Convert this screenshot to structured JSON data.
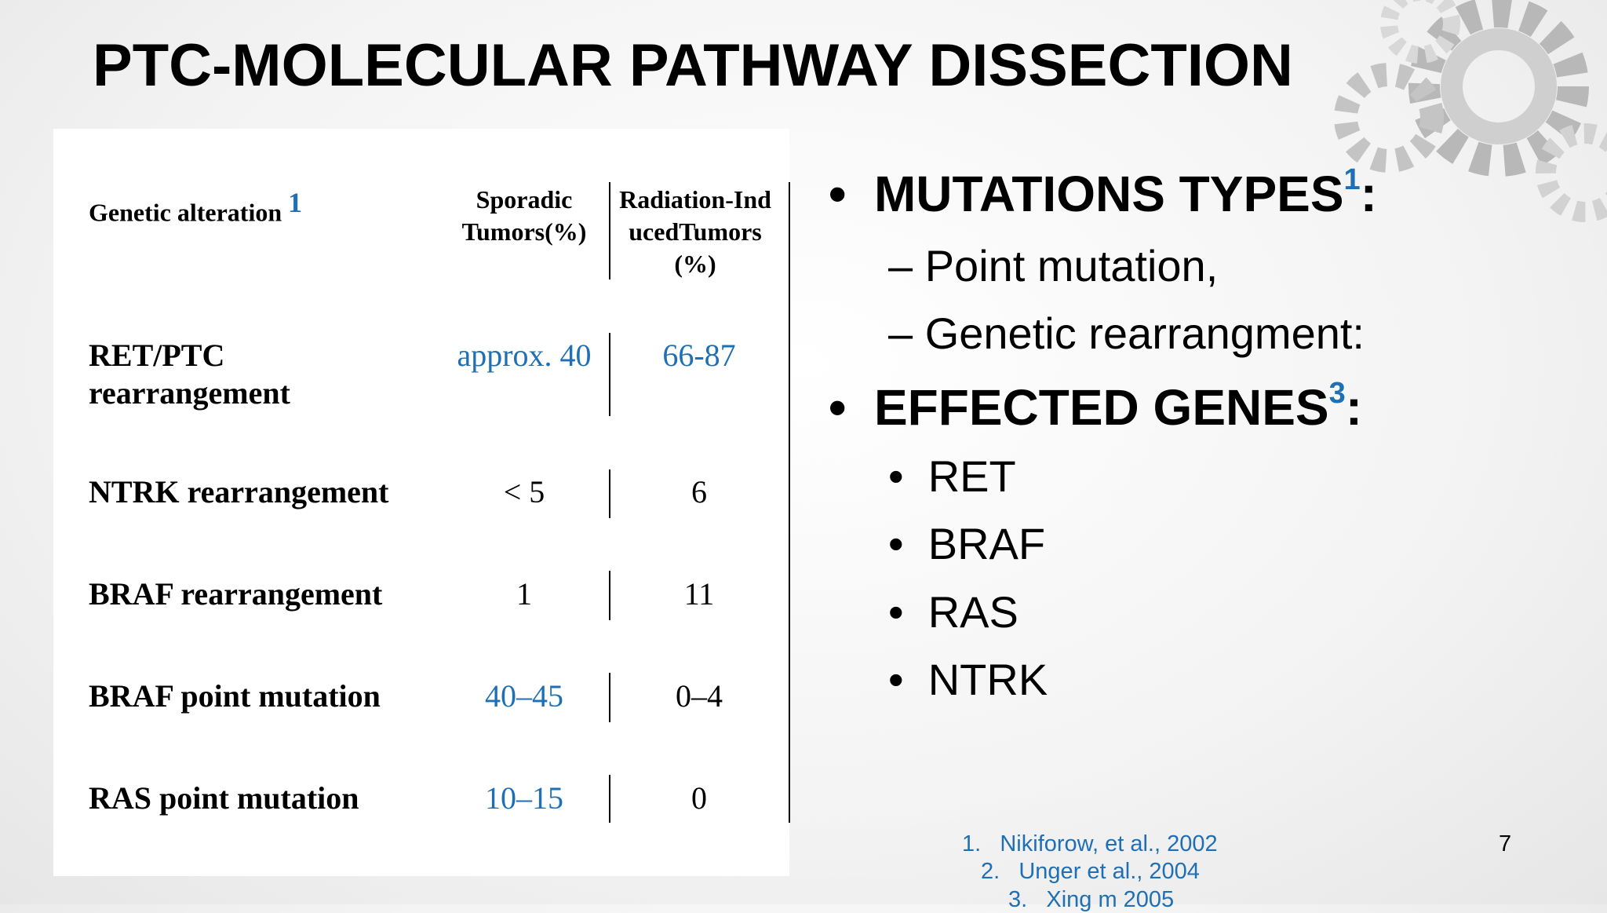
{
  "title": "PTC-MOLECULAR PATHWAY DISSECTION",
  "table": {
    "header": [
      "Genetic alteration",
      "Sporadic Tumors(%)",
      "Radiation-InducedTumors (%)"
    ],
    "header_ref": "1",
    "rows": [
      [
        "RET/PTC rearrangement",
        "approx. 40",
        "66-87"
      ],
      [
        "NTRK rearrangement",
        "< 5",
        "6"
      ],
      [
        "BRAF rearrangement",
        "1",
        "11"
      ],
      [
        "BRAF point mutation",
        "40–45",
        "0–4"
      ],
      [
        "RAS point mutation",
        "10–15",
        "0"
      ]
    ]
  },
  "bullets": [
    {
      "text": "MUTATIONS TYPES",
      "ref": "1",
      "suffix": ":",
      "items": [
        "Point mutation,",
        "Genetic rearrangment:"
      ]
    },
    {
      "text": "EFFECTED GENES",
      "ref": "3",
      "suffix": ":",
      "items": [
        "RET",
        "BRAF",
        "RAS",
        "NTRK"
      ]
    }
  ],
  "references": [
    {
      "num": "1.",
      "text": "Nikiforow, et al., 2002"
    },
    {
      "num": "2.",
      "text": "Unger et al., 2004"
    },
    {
      "num": "3.",
      "text": "Xing m 2005"
    }
  ],
  "page_number": "7"
}
